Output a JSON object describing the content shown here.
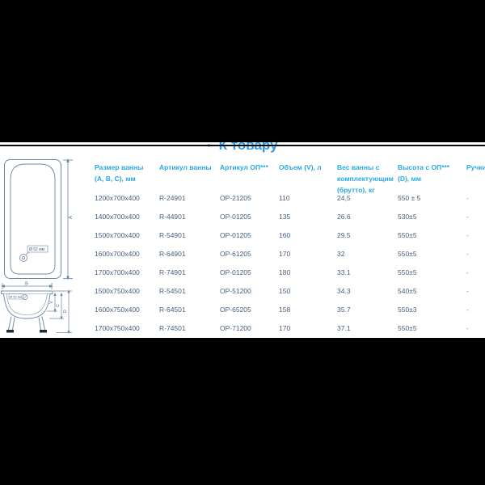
{
  "title": {
    "bullet": "•",
    "link_label": "К товару"
  },
  "table": {
    "headers": [
      "Размер ванны (A, B, C), мм",
      "Артикул ванны",
      "Артикул ОП***",
      "Объем (V), л",
      "Вес ванны с комплектующим (брутто), кг",
      "Высота с ОП*** (D), мм",
      "Ручки"
    ],
    "rows": [
      [
        "1200x700x400",
        "R-24901",
        "OP-21205",
        "110",
        "24,5",
        "550 ± 5",
        "-"
      ],
      [
        "1400x700x400",
        "R-44901",
        "OP-01205",
        "135",
        "26.6",
        "530±5",
        "-"
      ],
      [
        "1500x700x400",
        "R-54901",
        "OP-01205",
        "160",
        "29.5",
        "550±5",
        "-"
      ],
      [
        "1600x700x400",
        "R-64901",
        "OP-61205",
        "170",
        "32",
        "550±5",
        "-"
      ],
      [
        "1700x700x400",
        "R-74901",
        "OP-01205",
        "180",
        "33.1",
        "550±5",
        "-"
      ],
      [
        "1500x750x400",
        "R-54501",
        "OP-51200",
        "150",
        "34.3",
        "540±5",
        "-"
      ],
      [
        "1600x750x400",
        "R-64501",
        "OP-65205",
        "158",
        "35.7",
        "550±3",
        "-"
      ],
      [
        "1700x750x400",
        "R-74501",
        "OP-71200",
        "170",
        "37.1",
        "550±5",
        "-"
      ]
    ]
  },
  "diagram": {
    "top_view": {
      "length_label": "A",
      "drain_label": "Ø 52 мм"
    },
    "side_view": {
      "width_label": "B",
      "depth_label": "C",
      "volume_label": "V",
      "height_label": "D",
      "drain_label": "Ø 52 мм"
    }
  },
  "colors": {
    "background": "#000000",
    "content_bg": "#ffffff",
    "title_blue": "#2f9bee",
    "header_blue": "#29a8e0",
    "data_navy": "#44607e",
    "drawing_line": "#6b84a4"
  }
}
